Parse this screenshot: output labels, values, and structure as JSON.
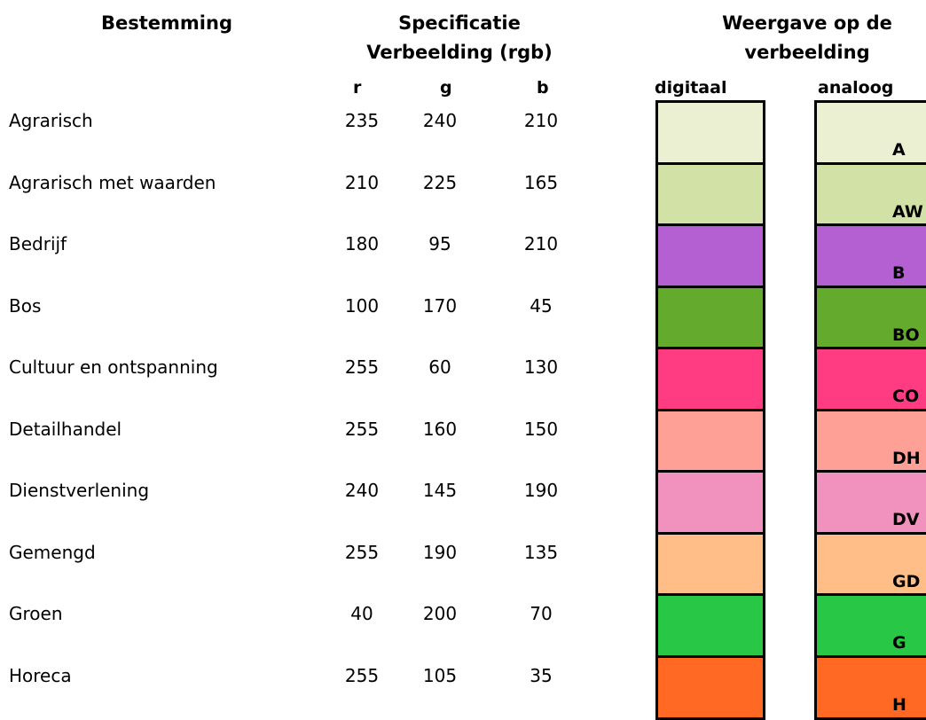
{
  "headers": {
    "bestemming": "Bestemming",
    "specificatie_line1": "Specificatie",
    "specificatie_line2": "Verbeelding (rgb)",
    "weergave_line1": "Weergave op de",
    "weergave_line2": "verbeelding",
    "col_r": "r",
    "col_g": "g",
    "col_b": "b",
    "col_digitaal": "digitaal",
    "col_analoog": "analoog"
  },
  "rows": [
    {
      "name": "Agrarisch",
      "r": "235",
      "g": "240",
      "b": "210",
      "code": "A",
      "color": "#ebf0d2"
    },
    {
      "name": "Agrarisch met waarden",
      "r": "210",
      "g": "225",
      "b": "165",
      "code": "AW",
      "color": "#d2e1a5"
    },
    {
      "name": "Bedrijf",
      "r": "180",
      "g": "95",
      "b": "210",
      "code": "B",
      "color": "#b45fd2"
    },
    {
      "name": "Bos",
      "r": "100",
      "g": "170",
      "b": "45",
      "code": "BO",
      "color": "#64aa2d"
    },
    {
      "name": "Cultuur en ontspanning",
      "r": "255",
      "g": "60",
      "b": "130",
      "code": "CO",
      "color": "#ff3c82"
    },
    {
      "name": "Detailhandel",
      "r": "255",
      "g": "160",
      "b": "150",
      "code": "DH",
      "color": "#ffa096"
    },
    {
      "name": "Dienstverlening",
      "r": "240",
      "g": "145",
      "b": "190",
      "code": "DV",
      "color": "#f091be"
    },
    {
      "name": "Gemengd",
      "r": "255",
      "g": "190",
      "b": "135",
      "code": "GD",
      "color": "#ffbe87"
    },
    {
      "name": "Groen",
      "r": "40",
      "g": "200",
      "b": "70",
      "code": "G",
      "color": "#28c846"
    },
    {
      "name": "Horeca",
      "r": "255",
      "g": "105",
      "b": "35",
      "code": "H",
      "color": "#ff6923"
    }
  ]
}
